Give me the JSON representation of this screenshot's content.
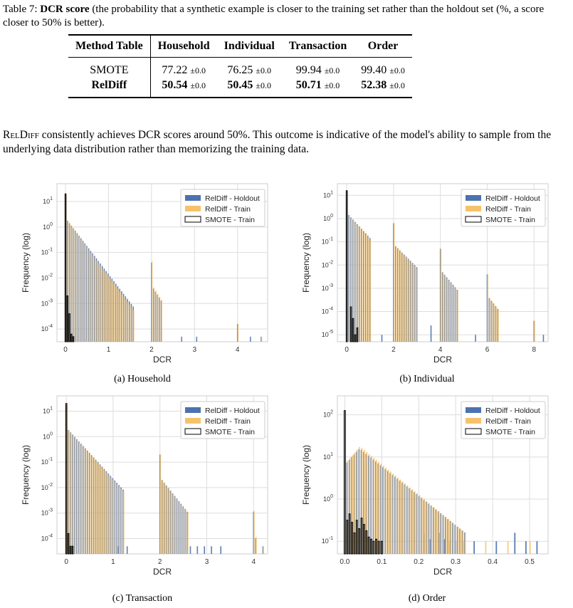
{
  "caption": {
    "label": "Table 7:",
    "title": "DCR score",
    "text": "(the probability that a synthetic example is closer to the training set rather than the holdout set (%, a score closer to 50% is better)."
  },
  "table": {
    "headers": [
      "Method",
      "Table",
      "Household",
      "Individual",
      "Transaction",
      "Order"
    ],
    "rows": [
      {
        "method": "SMOTE",
        "values": [
          "77.22",
          "76.25",
          "99.94",
          "99.40"
        ],
        "pm": "±0.0",
        "bold": false
      },
      {
        "method": "RelDiff",
        "values": [
          "50.54",
          "50.45",
          "50.71",
          "52.38"
        ],
        "pm": "±0.0",
        "bold": true
      }
    ]
  },
  "paragraph": {
    "model": "RelDiff",
    "text": " consistently achieves DCR scores around 50%. This outcome is indicative of the model's ability to sample from the underlying data distribution rather than memorizing the training data."
  },
  "colors": {
    "holdout": "#4c72b0",
    "train": "#f5c26b",
    "smote": "#000000"
  },
  "subcaptions": [
    "(a) Household",
    "(b) Individual",
    "(c) Transaction",
    "(d) Order"
  ],
  "chart_data": [
    {
      "type": "bar",
      "title": "",
      "xlabel": "DCR",
      "ylabel": "Frequency (log)",
      "yscale": "log",
      "xlim": [
        -0.2,
        4.7
      ],
      "ylim_exp": [
        -4.5,
        1.7
      ],
      "xticks": [
        0,
        1,
        2,
        3,
        4
      ],
      "yticks_exp": [
        -4,
        -3,
        -2,
        -1,
        0,
        1
      ],
      "legend": "top-right",
      "grid": true,
      "series": [
        {
          "name": "RelDiff - Holdout",
          "kind": "holdout",
          "clusters": [
            {
              "start": 0,
              "width": 0.045,
              "peak": 1.25,
              "slope": 2.2,
              "n": 36
            },
            {
              "start": 2.0,
              "width": 0.045,
              "peak": -1.4,
              "slope": 2.6,
              "n": 6
            },
            {
              "start": 4.0,
              "width": 0.045,
              "peak": -3.8,
              "slope": 1,
              "n": 1
            }
          ],
          "outliers": [
            [
              2.7,
              -4.3
            ],
            [
              3.05,
              -4.3
            ],
            [
              4.3,
              -4.3
            ],
            [
              4.55,
              -4.3
            ]
          ]
        },
        {
          "name": "RelDiff - Train",
          "kind": "train",
          "clusters": [
            {
              "start": 0,
              "width": 0.045,
              "peak": 1.25,
              "slope": 2.3,
              "n": 36
            },
            {
              "start": 2.0,
              "width": 0.045,
              "peak": -1.35,
              "slope": 2.7,
              "n": 6
            },
            {
              "start": 4.0,
              "width": 0.045,
              "peak": -3.8,
              "slope": 1,
              "n": 1
            }
          ],
          "outliers": [
            [
              4.55,
              -4.3
            ]
          ]
        },
        {
          "name": "SMOTE - Train",
          "kind": "smote",
          "bars": [
            [
              0.0,
              1.3
            ],
            [
              0.045,
              -2.7
            ],
            [
              0.09,
              -3.4
            ],
            [
              0.135,
              -4.2
            ],
            [
              0.18,
              -4.3
            ]
          ]
        }
      ]
    },
    {
      "type": "bar",
      "title": "",
      "xlabel": "DCR",
      "ylabel": "Frequency (log)",
      "yscale": "log",
      "xlim": [
        -0.4,
        8.6
      ],
      "ylim_exp": [
        -5.3,
        1.5
      ],
      "xticks": [
        0,
        2,
        4,
        6,
        8
      ],
      "yticks_exp": [
        -5,
        -4,
        -3,
        -2,
        -1,
        0,
        1
      ],
      "legend": "top-right",
      "grid": true,
      "series": [
        {
          "name": "RelDiff - Holdout",
          "kind": "holdout",
          "clusters": [
            {
              "start": 0,
              "width": 0.09,
              "peak": 1.15,
              "slope": 1.1,
              "n": 12
            },
            {
              "start": 2.0,
              "width": 0.09,
              "peak": -0.2,
              "slope": 1.0,
              "n": 12
            },
            {
              "start": 4.0,
              "width": 0.09,
              "peak": -1.3,
              "slope": 1.2,
              "n": 9
            },
            {
              "start": 6.0,
              "width": 0.09,
              "peak": -2.4,
              "slope": 1.3,
              "n": 6
            },
            {
              "start": 8.0,
              "width": 0.09,
              "peak": -4.4,
              "slope": 1,
              "n": 2
            }
          ],
          "outliers": [
            [
              1.5,
              -5.0
            ],
            [
              3.6,
              -4.6
            ],
            [
              5.5,
              -5.0
            ],
            [
              8.4,
              -5.0
            ]
          ]
        },
        {
          "name": "RelDiff - Train",
          "kind": "train",
          "clusters": [
            {
              "start": 0,
              "width": 0.09,
              "peak": 1.15,
              "slope": 1.15,
              "n": 12
            },
            {
              "start": 2.0,
              "width": 0.09,
              "peak": -0.2,
              "slope": 1.05,
              "n": 12
            },
            {
              "start": 4.0,
              "width": 0.09,
              "peak": -1.3,
              "slope": 1.25,
              "n": 9
            },
            {
              "start": 6.0,
              "width": 0.09,
              "peak": -2.4,
              "slope": 1.35,
              "n": 6
            },
            {
              "start": 8.0,
              "width": 0.09,
              "peak": -4.4,
              "slope": 1,
              "n": 2
            }
          ],
          "outliers": []
        },
        {
          "name": "SMOTE - Train",
          "kind": "smote",
          "bars": [
            [
              0.0,
              1.2
            ],
            [
              0.18,
              -3.8
            ],
            [
              0.27,
              -4.3
            ],
            [
              0.36,
              -5.0
            ],
            [
              0.45,
              -4.7
            ]
          ]
        }
      ]
    },
    {
      "type": "bar",
      "title": "",
      "xlabel": "DCR",
      "ylabel": "Frequency (log)",
      "yscale": "log",
      "xlim": [
        -0.2,
        4.3
      ],
      "ylim_exp": [
        -4.6,
        1.6
      ],
      "xticks": [
        0,
        1,
        2,
        3,
        4
      ],
      "yticks_exp": [
        -4,
        -3,
        -2,
        -1,
        0,
        1
      ],
      "legend": "top-right",
      "grid": true,
      "series": [
        {
          "name": "RelDiff - Holdout",
          "kind": "holdout",
          "clusters": [
            {
              "start": 0,
              "width": 0.045,
              "peak": 1.25,
              "slope": 2.0,
              "n": 28
            },
            {
              "start": 2.0,
              "width": 0.045,
              "peak": -0.7,
              "slope": 2.3,
              "n": 14
            },
            {
              "start": 4.0,
              "width": 0.045,
              "peak": -2.95,
              "slope": 3,
              "n": 2
            }
          ],
          "outliers": [
            [
              1.1,
              -4.3
            ],
            [
              1.3,
              -4.3
            ],
            [
              2.65,
              -4.3
            ],
            [
              2.8,
              -4.3
            ],
            [
              2.95,
              -4.3
            ],
            [
              3.1,
              -4.3
            ],
            [
              3.3,
              -4.3
            ],
            [
              4.2,
              -4.3
            ]
          ]
        },
        {
          "name": "RelDiff - Train",
          "kind": "train",
          "clusters": [
            {
              "start": 0,
              "width": 0.045,
              "peak": 1.25,
              "slope": 2.05,
              "n": 28
            },
            {
              "start": 2.0,
              "width": 0.045,
              "peak": -0.7,
              "slope": 2.35,
              "n": 14
            },
            {
              "start": 4.0,
              "width": 0.045,
              "peak": -2.9,
              "slope": 3,
              "n": 2
            }
          ],
          "outliers": [
            [
              4.2,
              -4.3
            ]
          ]
        },
        {
          "name": "SMOTE - Train",
          "kind": "smote",
          "bars": [
            [
              0.0,
              1.3
            ],
            [
              0.045,
              -3.8
            ],
            [
              0.09,
              -4.3
            ],
            [
              0.135,
              -4.3
            ]
          ]
        }
      ]
    },
    {
      "type": "bar",
      "title": "",
      "xlabel": "DCR",
      "ylabel": "Frequency (log)",
      "yscale": "log",
      "xlim": [
        -0.02,
        0.55
      ],
      "ylim_exp": [
        -1.3,
        2.45
      ],
      "xticks": [
        0.0,
        0.1,
        0.2,
        0.3,
        0.4,
        0.5
      ],
      "yticks_exp": [
        -1,
        0,
        1,
        2
      ],
      "legend": "top-right",
      "grid": true,
      "series": [
        {
          "name": "RelDiff - Holdout",
          "kind": "holdout",
          "clusters": [
            {
              "start": 0.006,
              "width": 0.0065,
              "rising": true,
              "peakAt": 0.04,
              "peak": 1.2,
              "slope": 7.0,
              "n": 50
            }
          ],
          "outliers": [
            [
              0.215,
              -0.8
            ],
            [
              0.23,
              -0.95
            ],
            [
              0.255,
              -0.8
            ],
            [
              0.27,
              -0.95
            ],
            [
              0.3,
              -1.0
            ],
            [
              0.35,
              -1.0
            ],
            [
              0.41,
              -1.0
            ],
            [
              0.46,
              -0.8
            ],
            [
              0.49,
              -1.0
            ],
            [
              0.52,
              -1.0
            ]
          ]
        },
        {
          "name": "RelDiff - Train",
          "kind": "train",
          "clusters": [
            {
              "start": 0.006,
              "width": 0.0065,
              "rising": true,
              "peakAt": 0.04,
              "peak": 1.25,
              "slope": 7.2,
              "n": 50
            }
          ],
          "outliers": [
            [
              0.28,
              -1.0
            ],
            [
              0.32,
              -1.0
            ],
            [
              0.38,
              -1.0
            ],
            [
              0.44,
              -1.0
            ],
            [
              0.5,
              -1.0
            ]
          ]
        },
        {
          "name": "SMOTE - Train",
          "kind": "smote",
          "bars": [
            [
              0.0,
              2.1
            ],
            [
              0.0065,
              -0.5
            ],
            [
              0.013,
              -0.35
            ],
            [
              0.0195,
              -0.55
            ],
            [
              0.026,
              -0.8
            ],
            [
              0.0325,
              -0.5
            ],
            [
              0.039,
              -0.7
            ],
            [
              0.0455,
              -0.45
            ],
            [
              0.052,
              -0.6
            ],
            [
              0.0585,
              -0.75
            ],
            [
              0.065,
              -0.9
            ],
            [
              0.0715,
              -0.95
            ],
            [
              0.078,
              -1.0
            ],
            [
              0.085,
              -0.95
            ],
            [
              0.092,
              -1.0
            ],
            [
              0.1,
              -1.0
            ]
          ]
        }
      ]
    }
  ]
}
